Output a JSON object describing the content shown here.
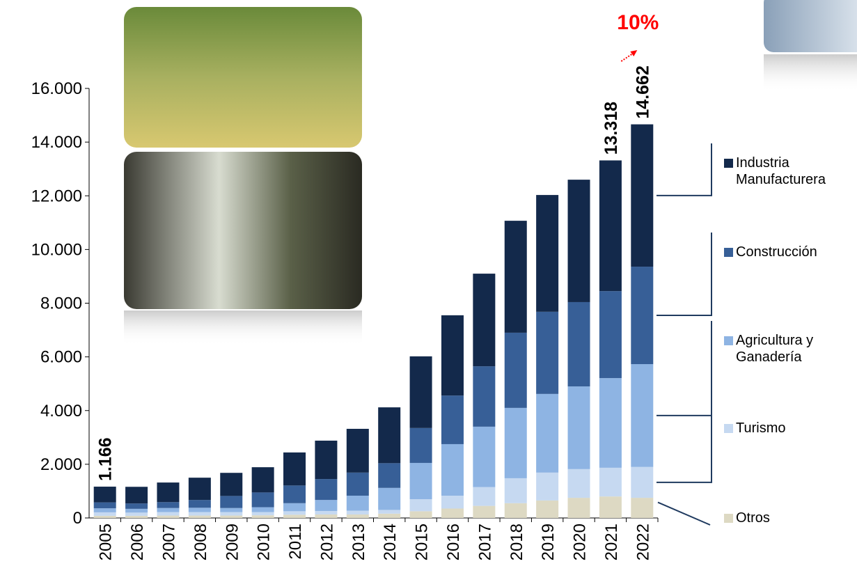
{
  "chart_data": {
    "type": "stacked_bar",
    "categories": [
      "2005",
      "2006",
      "2007",
      "2008",
      "2009",
      "2010",
      "2011",
      "2012",
      "2013",
      "2014",
      "2015",
      "2016",
      "2017",
      "2018",
      "2019",
      "2020",
      "2021",
      "2022"
    ],
    "series": [
      {
        "name": "Otros",
        "color": "#ddd9c3",
        "values": [
          80,
          80,
          90,
          90,
          90,
          100,
          120,
          130,
          130,
          160,
          250,
          350,
          450,
          550,
          650,
          750,
          800,
          750
        ]
      },
      {
        "name": "Turismo",
        "color": "#c6d9f1",
        "values": [
          130,
          120,
          130,
          130,
          130,
          120,
          130,
          130,
          140,
          140,
          450,
          480,
          700,
          930,
          1040,
          1070,
          1070,
          1150
        ]
      },
      {
        "name": "Agricultura y Ganadería",
        "color": "#8eb4e3",
        "values": [
          150,
          140,
          150,
          160,
          150,
          180,
          300,
          410,
          560,
          820,
          1350,
          1920,
          2250,
          2620,
          2930,
          3080,
          3340,
          3830
        ]
      },
      {
        "name": "Construcción",
        "color": "#375f97",
        "values": [
          220,
          200,
          220,
          290,
          450,
          550,
          660,
          780,
          860,
          920,
          1300,
          1810,
          2250,
          2800,
          3060,
          3140,
          3240,
          3630
        ]
      },
      {
        "name": "Industria Manufacturera",
        "color": "#13294b",
        "values": [
          586,
          620,
          730,
          830,
          860,
          940,
          1230,
          1430,
          1630,
          2080,
          2670,
          2990,
          3450,
          4170,
          4350,
          4560,
          4868,
          5302
        ]
      }
    ],
    "annotations": [
      "1.166",
      "13.318",
      "14.662",
      "10%"
    ],
    "ylim": [
      0,
      16000
    ],
    "yticks": [
      0,
      {
        "value": 2000,
        "label": "2.000"
      },
      {
        "value": 4000,
        "label": "4.000"
      },
      {
        "value": 6000,
        "label": "6.000"
      },
      {
        "value": 8000,
        "label": "8.000"
      },
      {
        "value": 10000,
        "label": "10.000"
      },
      {
        "value": 12000,
        "label": "12.000"
      },
      {
        "value": 14000,
        "label": "14.000"
      },
      {
        "value": 16000,
        "label": "16.000"
      }
    ],
    "legend": "right"
  }
}
